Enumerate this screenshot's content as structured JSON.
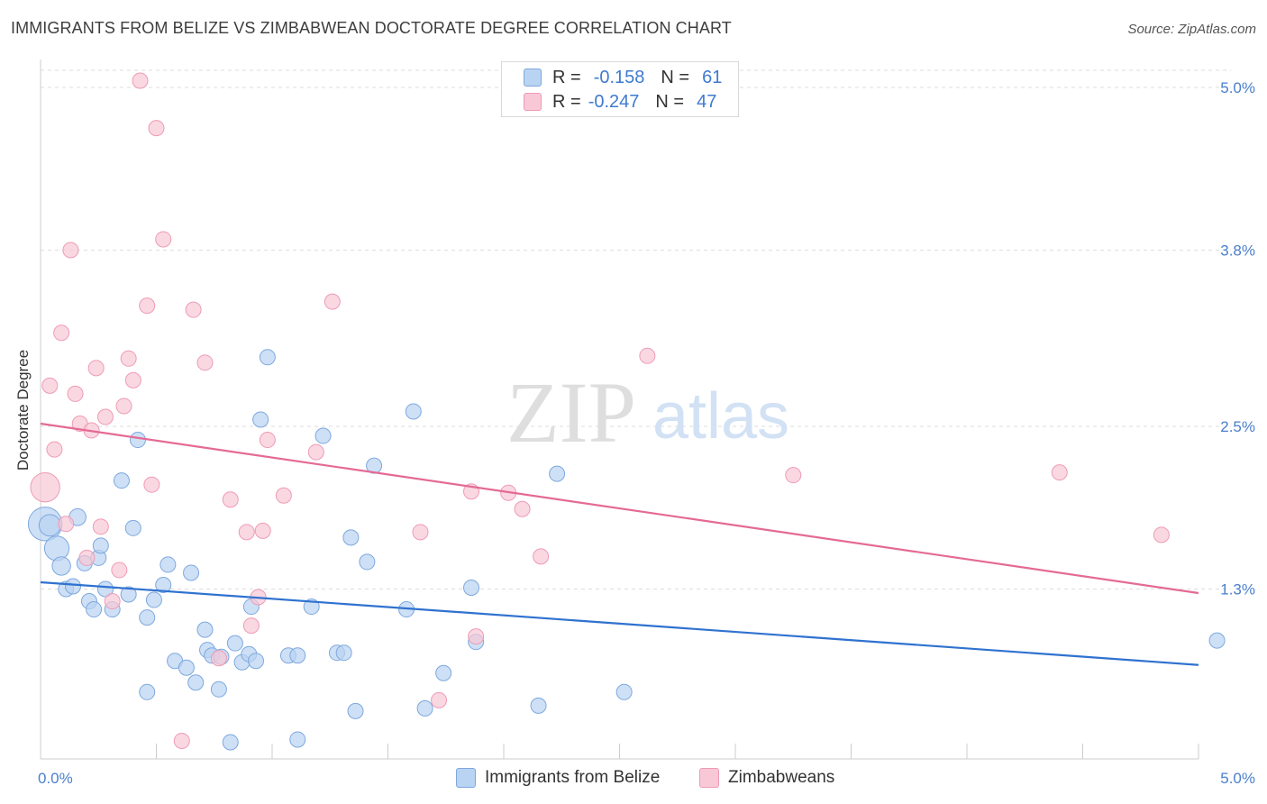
{
  "title": "IMMIGRANTS FROM BELIZE VS ZIMBABWEAN DOCTORATE DEGREE CORRELATION CHART",
  "source": "Source: ZipAtlas.com",
  "watermark": {
    "zip": "ZIP",
    "atlas": "atlas"
  },
  "legend_top": [
    {
      "r_label": "R =",
      "r_value": "-0.158",
      "n_label": "N =",
      "n_value": "61"
    },
    {
      "r_label": "R =",
      "r_value": "-0.247",
      "n_label": "N =",
      "n_value": "47"
    }
  ],
  "colors": {
    "blue_fill": "#b9d3f2",
    "blue_stroke": "#7ea8de",
    "blue_line": "#2f72d0",
    "pink_fill": "#f8c8d6",
    "pink_stroke": "#ef9bb6",
    "pink_line": "#e46a94",
    "tick_label": "#4a7fcf",
    "grid": "#dedede",
    "axis": "#cccccc"
  },
  "chart_data": {
    "type": "scatter",
    "title": "IMMIGRANTS FROM BELIZE VS ZIMBABWEAN DOCTORATE DEGREE CORRELATION CHART",
    "xlabel": "",
    "ylabel": "Doctorate Degree",
    "xlim": [
      0,
      5.0
    ],
    "ylim": [
      0,
      5.2
    ],
    "x_tick_labels": [
      {
        "value": 0,
        "label": "0.0%"
      },
      {
        "value": 5.0,
        "label": "5.0%"
      }
    ],
    "y_tick_labels": [
      {
        "value": 1.3,
        "label": "1.3%"
      },
      {
        "value": 2.5,
        "label": "2.5%"
      },
      {
        "value": 3.8,
        "label": "3.8%"
      },
      {
        "value": 5.0,
        "label": "5.0%"
      }
    ],
    "grid": true,
    "legend_position": "top-center",
    "series": [
      {
        "name": "Immigrants from Belize",
        "color": "#b9d3f2",
        "trend": {
          "x": [
            0,
            5.0
          ],
          "y": [
            1.35,
            0.74
          ]
        },
        "points": [
          {
            "x": 0.02,
            "y": 1.78,
            "s": 2.2
          },
          {
            "x": 0.04,
            "y": 1.77,
            "s": 1.4
          },
          {
            "x": 0.07,
            "y": 1.6,
            "s": 1.6
          },
          {
            "x": 0.09,
            "y": 1.47,
            "s": 1.2
          },
          {
            "x": 0.11,
            "y": 1.3,
            "s": 1.0
          },
          {
            "x": 0.14,
            "y": 1.32,
            "s": 1.0
          },
          {
            "x": 0.16,
            "y": 1.83,
            "s": 1.1
          },
          {
            "x": 0.19,
            "y": 1.49,
            "s": 1.0
          },
          {
            "x": 0.21,
            "y": 1.21,
            "s": 1.0
          },
          {
            "x": 0.23,
            "y": 1.15,
            "s": 1.0
          },
          {
            "x": 0.25,
            "y": 1.53,
            "s": 1.0
          },
          {
            "x": 0.26,
            "y": 1.62,
            "s": 1.0
          },
          {
            "x": 0.28,
            "y": 1.3,
            "s": 1.0
          },
          {
            "x": 0.31,
            "y": 1.15,
            "s": 1.0
          },
          {
            "x": 0.35,
            "y": 2.1,
            "s": 1.0
          },
          {
            "x": 0.38,
            "y": 1.26,
            "s": 1.0
          },
          {
            "x": 0.4,
            "y": 1.75,
            "s": 1.0
          },
          {
            "x": 0.42,
            "y": 2.4,
            "s": 1.0
          },
          {
            "x": 0.46,
            "y": 1.09,
            "s": 1.0
          },
          {
            "x": 0.46,
            "y": 0.54,
            "s": 1.0
          },
          {
            "x": 0.49,
            "y": 1.22,
            "s": 1.0
          },
          {
            "x": 0.53,
            "y": 1.33,
            "s": 1.0
          },
          {
            "x": 0.55,
            "y": 1.48,
            "s": 1.0
          },
          {
            "x": 0.58,
            "y": 0.77,
            "s": 1.0
          },
          {
            "x": 0.63,
            "y": 0.72,
            "s": 1.0
          },
          {
            "x": 0.65,
            "y": 1.42,
            "s": 1.0
          },
          {
            "x": 0.67,
            "y": 0.61,
            "s": 1.0
          },
          {
            "x": 0.71,
            "y": 1.0,
            "s": 1.0
          },
          {
            "x": 0.72,
            "y": 0.85,
            "s": 1.0
          },
          {
            "x": 0.74,
            "y": 0.81,
            "s": 1.0
          },
          {
            "x": 0.77,
            "y": 0.56,
            "s": 1.0
          },
          {
            "x": 0.78,
            "y": 0.8,
            "s": 1.0
          },
          {
            "x": 0.82,
            "y": 0.17,
            "s": 1.0
          },
          {
            "x": 0.84,
            "y": 0.9,
            "s": 1.0
          },
          {
            "x": 0.87,
            "y": 0.76,
            "s": 1.0
          },
          {
            "x": 0.9,
            "y": 0.82,
            "s": 1.0
          },
          {
            "x": 0.91,
            "y": 1.17,
            "s": 1.0
          },
          {
            "x": 0.93,
            "y": 0.77,
            "s": 1.0
          },
          {
            "x": 0.95,
            "y": 2.55,
            "s": 1.0
          },
          {
            "x": 0.98,
            "y": 3.01,
            "s": 1.0
          },
          {
            "x": 1.07,
            "y": 0.81,
            "s": 1.0
          },
          {
            "x": 1.11,
            "y": 0.81,
            "s": 1.0
          },
          {
            "x": 1.11,
            "y": 0.19,
            "s": 1.0
          },
          {
            "x": 1.17,
            "y": 1.17,
            "s": 1.0
          },
          {
            "x": 1.22,
            "y": 2.43,
            "s": 1.0
          },
          {
            "x": 1.28,
            "y": 0.83,
            "s": 1.0
          },
          {
            "x": 1.31,
            "y": 0.83,
            "s": 1.0
          },
          {
            "x": 1.34,
            "y": 1.68,
            "s": 1.0
          },
          {
            "x": 1.36,
            "y": 0.4,
            "s": 1.0
          },
          {
            "x": 1.41,
            "y": 1.5,
            "s": 1.0
          },
          {
            "x": 1.44,
            "y": 2.21,
            "s": 1.0
          },
          {
            "x": 1.58,
            "y": 1.15,
            "s": 1.0
          },
          {
            "x": 1.61,
            "y": 2.61,
            "s": 1.0
          },
          {
            "x": 1.66,
            "y": 0.42,
            "s": 1.0
          },
          {
            "x": 1.74,
            "y": 0.68,
            "s": 1.0
          },
          {
            "x": 1.86,
            "y": 1.31,
            "s": 1.0
          },
          {
            "x": 1.88,
            "y": 0.91,
            "s": 1.0
          },
          {
            "x": 2.15,
            "y": 0.44,
            "s": 1.0
          },
          {
            "x": 2.23,
            "y": 2.15,
            "s": 1.0
          },
          {
            "x": 2.52,
            "y": 0.54,
            "s": 1.0
          },
          {
            "x": 5.08,
            "y": 0.92,
            "s": 1.0
          }
        ]
      },
      {
        "name": "Zimbabweans",
        "color": "#f8c8d6",
        "trend": {
          "x": [
            0,
            5.0
          ],
          "y": [
            2.52,
            1.27
          ]
        },
        "points": [
          {
            "x": 0.02,
            "y": 2.05,
            "s": 1.9
          },
          {
            "x": 0.04,
            "y": 2.8,
            "s": 1.0
          },
          {
            "x": 0.06,
            "y": 2.33,
            "s": 1.0
          },
          {
            "x": 0.09,
            "y": 3.19,
            "s": 1.0
          },
          {
            "x": 0.11,
            "y": 1.78,
            "s": 1.0
          },
          {
            "x": 0.13,
            "y": 3.8,
            "s": 1.0
          },
          {
            "x": 0.15,
            "y": 2.74,
            "s": 1.0
          },
          {
            "x": 0.17,
            "y": 2.52,
            "s": 1.0
          },
          {
            "x": 0.2,
            "y": 1.53,
            "s": 1.0
          },
          {
            "x": 0.22,
            "y": 2.47,
            "s": 1.0
          },
          {
            "x": 0.24,
            "y": 2.93,
            "s": 1.0
          },
          {
            "x": 0.26,
            "y": 1.76,
            "s": 1.0
          },
          {
            "x": 0.28,
            "y": 2.57,
            "s": 1.0
          },
          {
            "x": 0.31,
            "y": 1.21,
            "s": 1.0
          },
          {
            "x": 0.34,
            "y": 1.44,
            "s": 1.0
          },
          {
            "x": 0.36,
            "y": 2.65,
            "s": 1.0
          },
          {
            "x": 0.38,
            "y": 3.0,
            "s": 1.0
          },
          {
            "x": 0.4,
            "y": 2.84,
            "s": 1.0
          },
          {
            "x": 0.43,
            "y": 5.05,
            "s": 1.0
          },
          {
            "x": 0.46,
            "y": 3.39,
            "s": 1.0
          },
          {
            "x": 0.48,
            "y": 2.07,
            "s": 1.0
          },
          {
            "x": 0.5,
            "y": 4.7,
            "s": 1.0
          },
          {
            "x": 0.53,
            "y": 3.88,
            "s": 1.0
          },
          {
            "x": 0.61,
            "y": 0.18,
            "s": 1.0
          },
          {
            "x": 0.66,
            "y": 3.36,
            "s": 1.0
          },
          {
            "x": 0.71,
            "y": 2.97,
            "s": 1.0
          },
          {
            "x": 0.77,
            "y": 0.79,
            "s": 1.0
          },
          {
            "x": 0.82,
            "y": 1.96,
            "s": 1.0
          },
          {
            "x": 0.89,
            "y": 1.72,
            "s": 1.0
          },
          {
            "x": 0.91,
            "y": 1.03,
            "s": 1.0
          },
          {
            "x": 0.94,
            "y": 1.24,
            "s": 1.0
          },
          {
            "x": 0.96,
            "y": 1.73,
            "s": 1.0
          },
          {
            "x": 0.98,
            "y": 2.4,
            "s": 1.0
          },
          {
            "x": 1.05,
            "y": 1.99,
            "s": 1.0
          },
          {
            "x": 1.19,
            "y": 2.31,
            "s": 1.0
          },
          {
            "x": 1.26,
            "y": 3.42,
            "s": 1.0
          },
          {
            "x": 1.64,
            "y": 1.72,
            "s": 1.0
          },
          {
            "x": 1.72,
            "y": 0.48,
            "s": 1.0
          },
          {
            "x": 1.86,
            "y": 2.02,
            "s": 1.0
          },
          {
            "x": 1.88,
            "y": 0.95,
            "s": 1.0
          },
          {
            "x": 2.02,
            "y": 2.01,
            "s": 1.0
          },
          {
            "x": 2.08,
            "y": 1.89,
            "s": 1.0
          },
          {
            "x": 2.16,
            "y": 1.54,
            "s": 1.0
          },
          {
            "x": 2.62,
            "y": 3.02,
            "s": 1.0
          },
          {
            "x": 3.25,
            "y": 2.14,
            "s": 1.0
          },
          {
            "x": 4.4,
            "y": 2.16,
            "s": 1.0
          },
          {
            "x": 4.84,
            "y": 1.7,
            "s": 1.0
          }
        ]
      }
    ]
  },
  "legend_bottom": [
    "Immigrants from Belize",
    "Zimbabweans"
  ]
}
